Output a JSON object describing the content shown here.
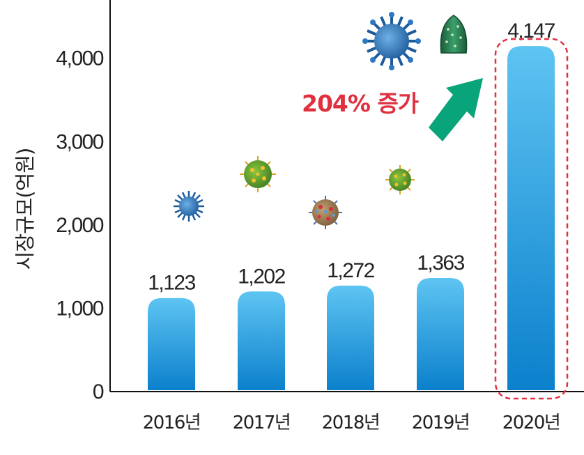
{
  "chart_data": {
    "type": "bar",
    "ylabel": "시장규모(억원)",
    "categories": [
      "2016년",
      "2017년",
      "2018년",
      "2019년",
      "2020년"
    ],
    "values": [
      1123,
      1202,
      1272,
      1363,
      4147
    ],
    "value_labels": [
      "1,123",
      "1,202",
      "1,272",
      "1,363",
      "4,147"
    ],
    "yticks": [
      0,
      1000,
      2000,
      3000,
      4000
    ],
    "ytick_labels": [
      "0",
      "1,000",
      "2,000",
      "3,000",
      "4,000"
    ],
    "ylim": [
      0,
      4700
    ],
    "highlight_category": "2020년",
    "annotation": "204% 증가",
    "grid": false,
    "colors": {
      "bar_top": "#5ec4f2",
      "bar_bottom": "#0b80cc",
      "highlight_border": "#e03040",
      "arrow": "#0aa47a",
      "annotation": "#e03040"
    }
  },
  "decorations": [
    "virus-icon-blue-small",
    "virus-icon-green",
    "virus-icon-brown",
    "virus-icon-green-small",
    "virus-icon-blue-large",
    "virus-icon-green-cone"
  ]
}
